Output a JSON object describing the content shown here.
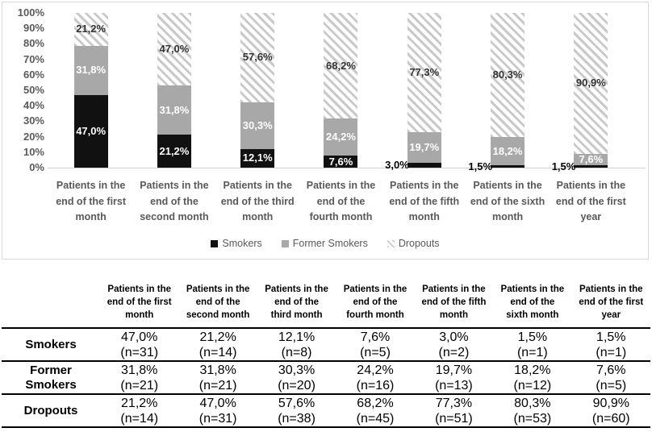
{
  "chart": {
    "y_ticks": [
      {
        "label": "100%",
        "value": 100
      },
      {
        "label": "90%",
        "value": 90
      },
      {
        "label": "80%",
        "value": 80
      },
      {
        "label": "70%",
        "value": 70
      },
      {
        "label": "60%",
        "value": 60
      },
      {
        "label": "50%",
        "value": 50
      },
      {
        "label": "40%",
        "value": 40
      },
      {
        "label": "30%",
        "value": 30
      },
      {
        "label": "20%",
        "value": 20
      },
      {
        "label": "10%",
        "value": 10
      },
      {
        "label": "0%",
        "value": 0
      }
    ],
    "legend": [
      {
        "key": "smokers",
        "label": "Smokers",
        "swatch": "solid-black-square"
      },
      {
        "key": "former",
        "label": "Former Smokers",
        "swatch": "solid-gray-square"
      },
      {
        "key": "dropouts",
        "label": "Dropouts",
        "swatch": "diagonal-hatch-square"
      }
    ],
    "colors": {
      "smokers": "#111111",
      "former_smokers": "#a8a8a8",
      "hatch_stripe": "#c9c9c9",
      "hatch_background": "#ffffff",
      "axis_text": "#595959",
      "chart_border": "#d9d9d9",
      "axis_line": "#cfcfcf",
      "label_inside_bar": "#ffffff",
      "label_on_hatch": "#333333",
      "label_outside_bar": "#000000"
    }
  },
  "chart_data": {
    "type": "bar",
    "stacked": true,
    "orientation": "vertical",
    "title": "",
    "xlabel": "",
    "ylabel": "",
    "ylim": [
      0,
      100
    ],
    "y_tick_step": 10,
    "grid": false,
    "legend_position": "bottom",
    "categories": [
      "Patients in the\nend of the first\nmonth",
      "Patients in the\nend of the\nsecond month",
      "Patients in the\nend of the third\nmonth",
      "Patients in the\nend of the\nfourth month",
      "Patients in the\nend of the fifth\nmonth",
      "Patients in the\nend of the sixth\nmonth",
      "Patients in the\nend of the first\nyear"
    ],
    "series": [
      {
        "key": "smokers",
        "name": "Smokers",
        "fill": "solid-black",
        "values": [
          47.0,
          21.2,
          12.1,
          7.6,
          3.0,
          1.5,
          1.5
        ],
        "labels": [
          "47,0%",
          "21,2%",
          "12,1%",
          "7,6%",
          "3,0%",
          "1,5%",
          "1,5%"
        ],
        "label_pos": [
          "in",
          "in",
          "in",
          "in",
          "out",
          "out",
          "out"
        ]
      },
      {
        "key": "former",
        "name": "Former Smokers",
        "fill": "solid-gray",
        "values": [
          31.8,
          31.8,
          30.3,
          24.2,
          19.7,
          18.2,
          7.6
        ],
        "labels": [
          "31,8%",
          "31,8%",
          "30,3%",
          "24,2%",
          "19,7%",
          "18,2%",
          "7,6%"
        ],
        "label_pos": [
          "in",
          "in",
          "in",
          "in",
          "in",
          "in",
          "in"
        ]
      },
      {
        "key": "dropouts",
        "name": "Dropouts",
        "fill": "diagonal-hatch",
        "values": [
          21.2,
          47.0,
          57.6,
          68.2,
          77.3,
          80.3,
          90.9
        ],
        "labels": [
          "21,2%",
          "47,0%",
          "57,6%",
          "68,2%",
          "77,3%",
          "80,3%",
          "90,9%"
        ],
        "label_pos": [
          "in",
          "in",
          "in",
          "in",
          "in",
          "in",
          "in"
        ]
      }
    ]
  },
  "table": {
    "corner_label": "",
    "col_headers": [
      "Patients in the\nend of the first\nmonth",
      "Patients in the\nend of the\nsecond month",
      "Patients in the\nend of the\nthird month",
      "Patients in the\nend of the\nfourth month",
      "Patients in the\nend of the fifth\nmonth",
      "Patients in the\nend of the\nsixth month",
      "Patients in the\nend of the first\nyear"
    ],
    "rows": [
      {
        "label": "Smokers",
        "cells": [
          {
            "pct": "47,0%",
            "n": "(n=31)"
          },
          {
            "pct": "21,2%",
            "n": "(n=14)"
          },
          {
            "pct": "12,1%",
            "n": "(n=8)"
          },
          {
            "pct": "7,6%",
            "n": "(n=5)"
          },
          {
            "pct": "3,0%",
            "n": "(n=2)"
          },
          {
            "pct": "1,5%",
            "n": "(n=1)"
          },
          {
            "pct": "1,5%",
            "n": "(n=1)"
          }
        ]
      },
      {
        "label": "Former Smokers",
        "cells": [
          {
            "pct": "31,8%",
            "n": "(n=21)"
          },
          {
            "pct": "31,8%",
            "n": "(n=21)"
          },
          {
            "pct": "30,3%",
            "n": "(n=20)"
          },
          {
            "pct": "24,2%",
            "n": "(n=16)"
          },
          {
            "pct": "19,7%",
            "n": "(n=13)"
          },
          {
            "pct": "18,2%",
            "n": "(n=12)"
          },
          {
            "pct": "7,6%",
            "n": "(n=5)"
          }
        ]
      },
      {
        "label": "Dropouts",
        "cells": [
          {
            "pct": "21,2%",
            "n": "(n=14)"
          },
          {
            "pct": "47,0%",
            "n": "(n=31)"
          },
          {
            "pct": "57,6%",
            "n": "(n=38)"
          },
          {
            "pct": "68,2%",
            "n": "(n=45)"
          },
          {
            "pct": "77,3%",
            "n": "(n=51)"
          },
          {
            "pct": "80,3%",
            "n": "(n=53)"
          },
          {
            "pct": "90,9%",
            "n": "(n=60)"
          }
        ]
      }
    ]
  }
}
